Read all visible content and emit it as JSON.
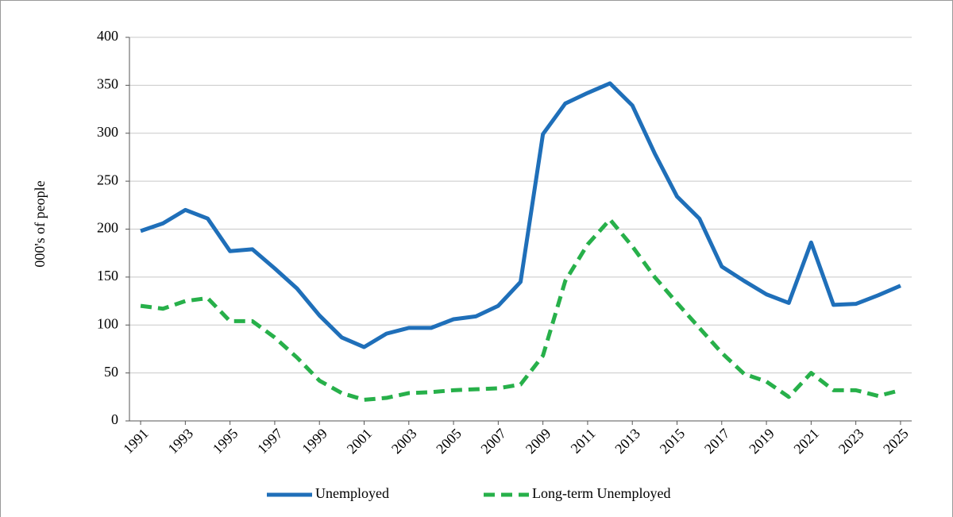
{
  "chart_data": {
    "type": "line",
    "y_label": "000's of people",
    "x": [
      1991,
      1992,
      1993,
      1994,
      1995,
      1996,
      1997,
      1998,
      1999,
      2000,
      2001,
      2002,
      2003,
      2004,
      2005,
      2006,
      2007,
      2008,
      2009,
      2010,
      2011,
      2012,
      2013,
      2014,
      2015,
      2016,
      2017,
      2018,
      2019,
      2020,
      2021,
      2022,
      2023,
      2024,
      2025
    ],
    "xlim": [
      1990.5,
      2025.5
    ],
    "xticks": [
      1991,
      1993,
      1995,
      1997,
      1999,
      2001,
      2003,
      2005,
      2007,
      2009,
      2011,
      2013,
      2015,
      2017,
      2019,
      2021,
      2023,
      2025
    ],
    "ylim": [
      0,
      400
    ],
    "yticks": [
      0,
      50,
      100,
      150,
      200,
      250,
      300,
      350,
      400
    ],
    "grid": true,
    "legend": "bottom",
    "series": [
      {
        "name": "Unemployed",
        "color": "#1f6fb9",
        "dashed": false,
        "values": [
          198,
          206,
          220,
          211,
          177,
          179,
          159,
          138,
          110,
          87,
          77,
          91,
          97,
          97,
          106,
          109,
          120,
          145,
          299,
          331,
          342,
          352,
          329,
          279,
          234,
          211,
          161,
          146,
          132,
          123,
          186,
          121,
          122,
          131,
          141
        ]
      },
      {
        "name": "Long-term Unemployed",
        "color": "#27b04a",
        "dashed": true,
        "values": [
          120,
          117,
          125,
          128,
          104,
          104,
          87,
          66,
          42,
          29,
          22,
          24,
          29,
          30,
          32,
          33,
          34,
          38,
          68,
          146,
          184,
          210,
          182,
          150,
          123,
          97,
          71,
          49,
          41,
          25,
          50,
          32,
          32,
          26,
          32
        ]
      }
    ]
  }
}
